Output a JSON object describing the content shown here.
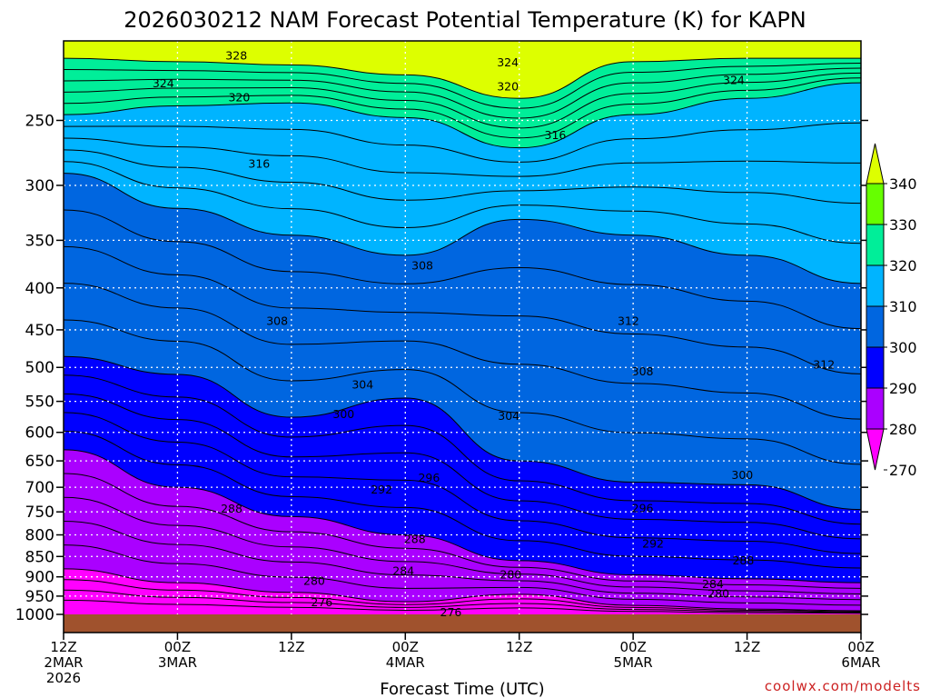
{
  "title": "2026030212 NAM Forecast Potential Temperature (K) for KAPN",
  "credit": "coolwx.com/modelts",
  "colors": {
    "band_270": "#ff00ff",
    "band_280": "#aa00ff",
    "band_290": "#0000ff",
    "band_300": "#0066e0",
    "band_310": "#00b4ff",
    "band_320": "#00ee99",
    "band_330": "#66ff00",
    "band_340": "#ddff00",
    "ground": "#a0522d",
    "contour": "#000000"
  },
  "chart_data": {
    "type": "contour",
    "xlabel": "Forecast Time (UTC)",
    "ylabel": "",
    "x_tick_labels": [
      [
        "12Z",
        "2MAR",
        "2026"
      ],
      [
        "00Z",
        "3MAR"
      ],
      [
        "12Z"
      ],
      [
        "00Z",
        "4MAR"
      ],
      [
        "12Z"
      ],
      [
        "00Z",
        "5MAR"
      ],
      [
        "12Z"
      ],
      [
        "00Z",
        "6MAR"
      ]
    ],
    "x_hours": [
      0,
      12,
      24,
      36,
      48,
      60,
      72,
      84
    ],
    "y_ticks_hpa": [
      250,
      300,
      350,
      400,
      450,
      500,
      550,
      600,
      650,
      700,
      750,
      800,
      850,
      900,
      950,
      1000
    ],
    "colorbar": {
      "levels": [
        270,
        280,
        290,
        300,
        310,
        320,
        330,
        340
      ],
      "band_keys": [
        "band_270",
        "band_280",
        "band_290",
        "band_300",
        "band_310",
        "band_320",
        "band_330",
        "band_340"
      ]
    },
    "isentropes": [
      {
        "theta": 330,
        "p": [
          210,
          212,
          214,
          220,
          235,
          212,
          210,
          210
        ]
      },
      {
        "theta": 320,
        "p": [
          246,
          240,
          238,
          248,
          270,
          246,
          235,
          225
        ]
      },
      {
        "theta": 310,
        "p": [
          290,
          320,
          345,
          365,
          330,
          345,
          365,
          395
        ]
      },
      {
        "theta": 300,
        "p": [
          485,
          510,
          575,
          545,
          650,
          690,
          695,
          745
        ]
      },
      {
        "theta": 290,
        "p": [
          630,
          700,
          760,
          800,
          860,
          895,
          905,
          915
        ]
      },
      {
        "theta": 280,
        "p": [
          880,
          915,
          940,
          965,
          945,
          975,
          985,
          990
        ]
      }
    ],
    "contour_labels": [
      {
        "text": "328",
        "h": 18.2,
        "p": 208
      },
      {
        "text": "324",
        "h": 10.5,
        "p": 225
      },
      {
        "text": "320",
        "h": 18.5,
        "p": 234
      },
      {
        "text": "324",
        "h": 46.8,
        "p": 212
      },
      {
        "text": "320",
        "h": 46.8,
        "p": 227
      },
      {
        "text": "324",
        "h": 70.6,
        "p": 223
      },
      {
        "text": "316",
        "h": 51.8,
        "p": 260
      },
      {
        "text": "316",
        "h": 20.6,
        "p": 282
      },
      {
        "text": "308",
        "h": 37.8,
        "p": 375
      },
      {
        "text": "308",
        "h": 22.5,
        "p": 438
      },
      {
        "text": "312",
        "h": 59.5,
        "p": 438
      },
      {
        "text": "312",
        "h": 80.1,
        "p": 495
      },
      {
        "text": "308",
        "h": 61.0,
        "p": 505
      },
      {
        "text": "304",
        "h": 31.5,
        "p": 524
      },
      {
        "text": "300",
        "h": 29.5,
        "p": 569
      },
      {
        "text": "304",
        "h": 46.9,
        "p": 572
      },
      {
        "text": "300",
        "h": 71.5,
        "p": 675
      },
      {
        "text": "296",
        "h": 38.5,
        "p": 680
      },
      {
        "text": "292",
        "h": 33.5,
        "p": 703
      },
      {
        "text": "288",
        "h": 17.7,
        "p": 742
      },
      {
        "text": "296",
        "h": 61.0,
        "p": 741
      },
      {
        "text": "288",
        "h": 37.0,
        "p": 808
      },
      {
        "text": "292",
        "h": 62.1,
        "p": 819
      },
      {
        "text": "288",
        "h": 71.6,
        "p": 858
      },
      {
        "text": "284",
        "h": 35.8,
        "p": 884
      },
      {
        "text": "280",
        "h": 47.1,
        "p": 893
      },
      {
        "text": "280",
        "h": 26.4,
        "p": 909
      },
      {
        "text": "284",
        "h": 68.4,
        "p": 917
      },
      {
        "text": "280",
        "h": 69.0,
        "p": 942
      },
      {
        "text": "276",
        "h": 27.2,
        "p": 965
      },
      {
        "text": "276",
        "h": 40.8,
        "p": 993
      }
    ]
  }
}
